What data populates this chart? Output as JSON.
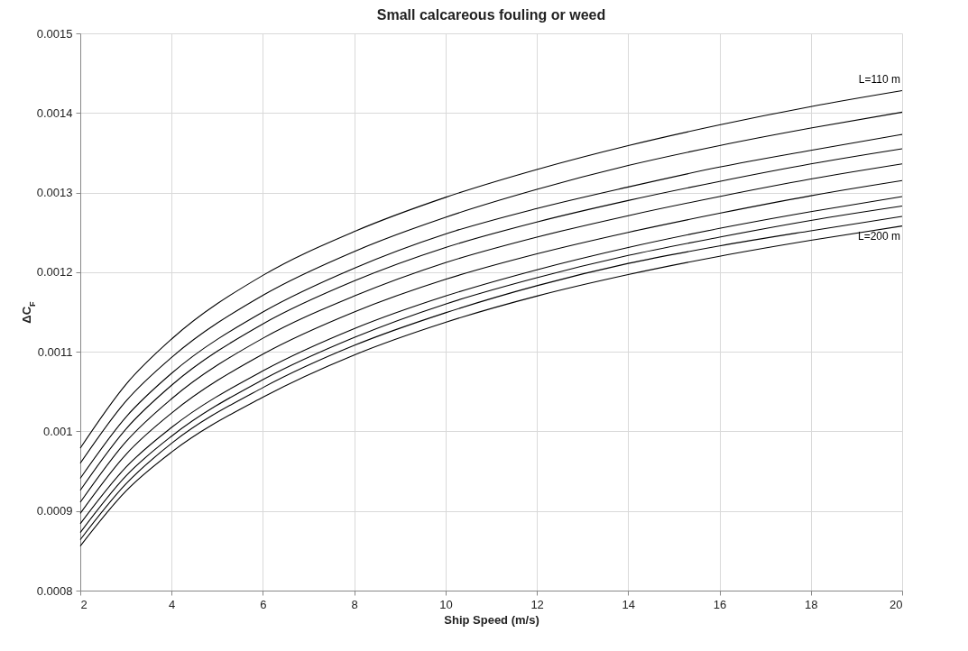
{
  "chart_data": {
    "type": "line",
    "title": "Small calcareous fouling or weed",
    "xlabel": "Ship Speed (m/s)",
    "ylabel": "ΔC$_{F}$",
    "x": [
      2,
      3,
      4,
      6,
      8,
      10,
      12,
      14,
      16,
      18,
      20
    ],
    "series": [
      {
        "color": "#000000",
        "values": [
          0.000979,
          0.001059,
          0.001116,
          0.001196,
          0.001251,
          0.001294,
          0.001329,
          0.001359,
          0.001385,
          0.001408,
          0.001428
        ]
      },
      {
        "color": "#000000",
        "values": [
          0.00096,
          0.001038,
          0.001093,
          0.001171,
          0.001226,
          0.001269,
          0.001304,
          0.001334,
          0.001359,
          0.001381,
          0.001401
        ]
      },
      {
        "color": "#000000",
        "values": [
          0.000941,
          0.001018,
          0.001073,
          0.00115,
          0.001205,
          0.001248,
          0.00128,
          0.001307,
          0.001332,
          0.001353,
          0.001373
        ]
      },
      {
        "color": "#000000",
        "values": [
          0.000926,
          0.001003,
          0.001058,
          0.001135,
          0.001189,
          0.001231,
          0.001263,
          0.00129,
          0.001314,
          0.001336,
          0.001355
        ]
      },
      {
        "color": "#000000",
        "values": [
          0.000911,
          0.000987,
          0.001041,
          0.001117,
          0.00117,
          0.001212,
          0.001244,
          0.001271,
          0.001295,
          0.001317,
          0.001336
        ]
      },
      {
        "color": "#000000",
        "values": [
          0.000897,
          0.000971,
          0.001023,
          0.001097,
          0.00115,
          0.001191,
          0.001223,
          0.00125,
          0.001274,
          0.001296,
          0.001315
        ]
      },
      {
        "color": "#000000",
        "values": [
          0.000884,
          0.000955,
          0.001005,
          0.001076,
          0.001129,
          0.00117,
          0.001203,
          0.001231,
          0.001255,
          0.001276,
          0.001295
        ]
      },
      {
        "color": "#000000",
        "values": [
          0.000873,
          0.000944,
          0.000994,
          0.001065,
          0.001118,
          0.00116,
          0.001193,
          0.001221,
          0.001244,
          0.001265,
          0.001283
        ]
      },
      {
        "color": "#000000",
        "values": [
          0.000864,
          0.000934,
          0.000985,
          0.001055,
          0.001108,
          0.001149,
          0.001183,
          0.001211,
          0.001233,
          0.001252,
          0.00127
        ]
      },
      {
        "color": "#000000",
        "values": [
          0.000856,
          0.000925,
          0.000974,
          0.001043,
          0.001096,
          0.001137,
          0.00117,
          0.001197,
          0.00122,
          0.00124,
          0.001258
        ]
      }
    ],
    "annotations": [
      "L=110 m",
      "L=200 m"
    ],
    "xlim": [
      2,
      20
    ],
    "xticks": [
      2,
      4,
      6,
      8,
      10,
      12,
      14,
      16,
      18,
      20
    ],
    "ylim": [
      0.0008,
      0.0015
    ],
    "yticks": [
      0.0008,
      0.0009,
      0.001,
      0.0011,
      0.0012,
      0.0013,
      0.0014,
      0.0015
    ],
    "grid": true,
    "line_style": "solid",
    "marker": "none",
    "legend": false
  }
}
